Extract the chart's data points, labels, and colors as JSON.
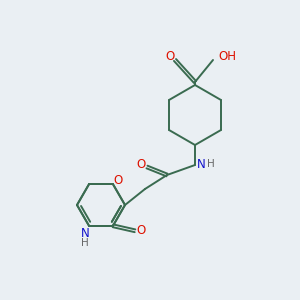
{
  "background_color": "#eaeff3",
  "bond_color": "#3a6b50",
  "atom_colors": {
    "O": "#dd1100",
    "N": "#1111cc",
    "H": "#666666",
    "C": "#3a6b50"
  }
}
